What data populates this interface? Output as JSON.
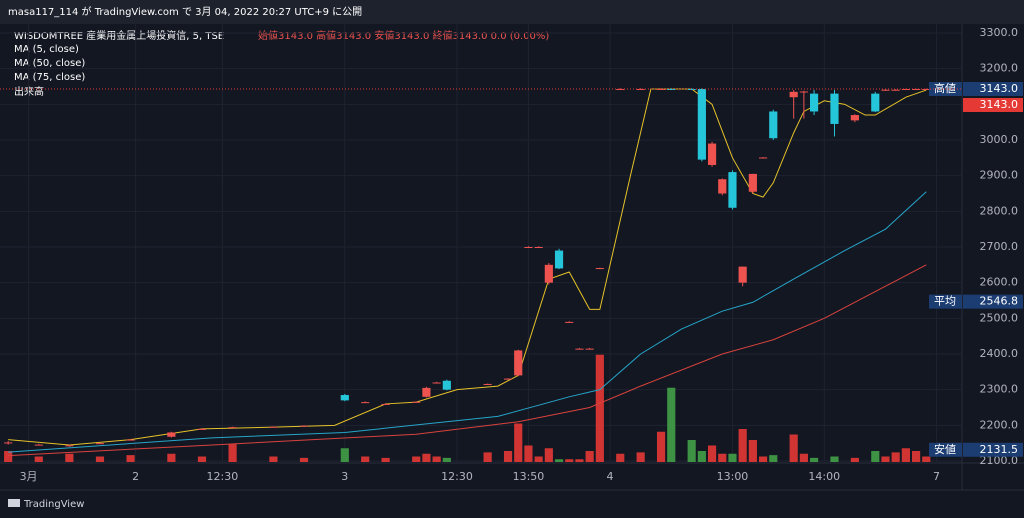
{
  "chart_data": {
    "type": "candlestick",
    "header": "masa117_114 が TradingView.com で 3月 04, 2022 20:27 UTC+9 に公開",
    "title": "WISDOMTREE 産業用金属上場投資信, 5, TSE",
    "ohlc_text": "始値3143.0 高値3143.0 安値3143.0 終値3143.0 0.0 (0.00%)",
    "volume_label": "出来高",
    "brand": "TradingView",
    "up_color": "#ef5350",
    "down_color": "#26c6da",
    "volume_up_color": "#e53935",
    "volume_down_color": "#43a047",
    "xlim": [
      -0.8,
      93.5
    ],
    "ylim": [
      2100,
      3300
    ],
    "vlim": [
      0,
      400
    ],
    "grid": true,
    "yticks": [
      {
        "value": 3300,
        "label": "3300.0"
      },
      {
        "value": 3200,
        "label": "3200.0"
      },
      {
        "value": 3100,
        "label": "3100.0"
      },
      {
        "value": 3000,
        "label": "3000.0"
      },
      {
        "value": 2900,
        "label": "2900.0"
      },
      {
        "value": 2800,
        "label": "2800.0"
      },
      {
        "value": 2700,
        "label": "2700.0"
      },
      {
        "value": 2600,
        "label": "2600.0"
      },
      {
        "value": 2500,
        "label": "2500.0"
      },
      {
        "value": 2400,
        "label": "2400.0"
      },
      {
        "value": 2300,
        "label": "2300.0"
      },
      {
        "value": 2200,
        "label": "2200.0"
      },
      {
        "value": 2100,
        "label": "2100.0"
      }
    ],
    "xticks": [
      {
        "value": 2,
        "label": "3月"
      },
      {
        "value": 12.5,
        "label": "2"
      },
      {
        "value": 21,
        "label": "12:30"
      },
      {
        "value": 33,
        "label": "3"
      },
      {
        "value": 44,
        "label": "12:30"
      },
      {
        "value": 51,
        "label": "13:50"
      },
      {
        "value": 59,
        "label": "4"
      },
      {
        "value": 71,
        "label": "13:00"
      },
      {
        "value": 80,
        "label": "14:00"
      },
      {
        "value": 91,
        "label": "7"
      }
    ],
    "candles": [
      {
        "x": 0,
        "open": 2150,
        "high": 2156,
        "low": 2146,
        "close": 2152,
        "volume": 40
      },
      {
        "x": 3,
        "open": 2146,
        "high": 2148,
        "low": 2144,
        "close": 2146,
        "volume": 20
      },
      {
        "x": 6,
        "open": 2142,
        "high": 2146,
        "low": 2140,
        "close": 2144,
        "volume": 30
      },
      {
        "x": 9,
        "open": 2150,
        "high": 2152,
        "low": 2148,
        "close": 2150,
        "volume": 20
      },
      {
        "x": 12,
        "open": 2160,
        "high": 2162,
        "low": 2158,
        "close": 2160,
        "volume": 25
      },
      {
        "x": 16,
        "open": 2168,
        "high": 2182,
        "low": 2166,
        "close": 2180,
        "volume": 30
      },
      {
        "x": 19,
        "open": 2190,
        "high": 2192,
        "low": 2188,
        "close": 2190,
        "volume": 20
      },
      {
        "x": 22,
        "open": 2195,
        "high": 2196,
        "low": 2193,
        "close": 2195,
        "volume": 65
      },
      {
        "x": 26,
        "open": 2195,
        "high": 2197,
        "low": 2194,
        "close": 2196,
        "volume": 20
      },
      {
        "x": 29,
        "open": 2198,
        "high": 2200,
        "low": 2197,
        "close": 2199,
        "volume": 15
      },
      {
        "x": 33,
        "open": 2285,
        "high": 2288,
        "low": 2268,
        "close": 2270,
        "volume": 50
      },
      {
        "x": 35,
        "open": 2265,
        "high": 2267,
        "low": 2263,
        "close": 2265,
        "volume": 20
      },
      {
        "x": 37,
        "open": 2260,
        "high": 2262,
        "low": 2258,
        "close": 2260,
        "volume": 15
      },
      {
        "x": 40,
        "open": 2265,
        "high": 2267,
        "low": 2263,
        "close": 2266,
        "volume": 20
      },
      {
        "x": 41,
        "open": 2280,
        "high": 2308,
        "low": 2278,
        "close": 2305,
        "volume": 30
      },
      {
        "x": 42,
        "open": 2320,
        "high": 2322,
        "low": 2318,
        "close": 2320,
        "volume": 20
      },
      {
        "x": 43,
        "open": 2325,
        "high": 2328,
        "low": 2298,
        "close": 2300,
        "volume": 15
      },
      {
        "x": 47,
        "open": 2315,
        "high": 2317,
        "low": 2313,
        "close": 2316,
        "volume": 35
      },
      {
        "x": 49,
        "open": 2330,
        "high": 2332,
        "low": 2328,
        "close": 2331,
        "volume": 40
      },
      {
        "x": 50,
        "open": 2340,
        "high": 2412,
        "low": 2338,
        "close": 2410,
        "volume": 140
      },
      {
        "x": 51,
        "open": 2700,
        "high": 2702,
        "low": 2698,
        "close": 2700,
        "volume": 60
      },
      {
        "x": 52,
        "open": 2700,
        "high": 2702,
        "low": 2698,
        "close": 2700,
        "volume": 20
      },
      {
        "x": 53,
        "open": 2600,
        "high": 2655,
        "low": 2595,
        "close": 2650,
        "volume": 50
      },
      {
        "x": 54,
        "open": 2690,
        "high": 2695,
        "low": 2638,
        "close": 2640,
        "volume": 10
      },
      {
        "x": 55,
        "open": 2490,
        "high": 2492,
        "low": 2488,
        "close": 2490,
        "volume": 10
      },
      {
        "x": 56,
        "open": 2415,
        "high": 2417,
        "low": 2413,
        "close": 2415,
        "volume": 10
      },
      {
        "x": 57,
        "open": 2415,
        "high": 2417,
        "low": 2413,
        "close": 2415,
        "volume": 40
      },
      {
        "x": 58,
        "open": 2640,
        "high": 2642,
        "low": 2638,
        "close": 2641,
        "volume": 390
      },
      {
        "x": 60,
        "open": 3143,
        "high": 3145,
        "low": 3141,
        "close": 3143,
        "volume": 30
      },
      {
        "x": 62,
        "open": 3143,
        "high": 3145,
        "low": 3141,
        "close": 3143,
        "volume": 35
      },
      {
        "x": 64,
        "open": 3143,
        "high": 3145,
        "low": 3141,
        "close": 3143,
        "volume": 110
      },
      {
        "x": 65,
        "open": 3143,
        "high": 3145,
        "low": 3141,
        "close": 3142,
        "volume": 270
      },
      {
        "x": 67,
        "open": 3143,
        "high": 3145,
        "low": 3141,
        "close": 3142,
        "volume": 80
      },
      {
        "x": 68,
        "open": 3143,
        "high": 3145,
        "low": 2940,
        "close": 2945,
        "volume": 40
      },
      {
        "x": 69,
        "open": 2930,
        "high": 2995,
        "low": 2925,
        "close": 2990,
        "volume": 60
      },
      {
        "x": 70,
        "open": 2850,
        "high": 2892,
        "low": 2845,
        "close": 2890,
        "volume": 30
      },
      {
        "x": 71,
        "open": 2910,
        "high": 2915,
        "low": 2805,
        "close": 2810,
        "volume": 30
      },
      {
        "x": 72,
        "open": 2600,
        "high": 2645,
        "low": 2590,
        "close": 2645,
        "volume": 120
      },
      {
        "x": 73,
        "open": 2855,
        "high": 2905,
        "low": 2850,
        "close": 2905,
        "volume": 80
      },
      {
        "x": 74,
        "open": 2950,
        "high": 2952,
        "low": 2948,
        "close": 2951,
        "volume": 20
      },
      {
        "x": 75,
        "open": 3080,
        "high": 3085,
        "low": 3000,
        "close": 3005,
        "volume": 25
      },
      {
        "x": 77,
        "open": 3120,
        "high": 3140,
        "low": 3060,
        "close": 3135,
        "volume": 100
      },
      {
        "x": 78,
        "open": 3135,
        "high": 3138,
        "low": 3060,
        "close": 3136,
        "volume": 30
      },
      {
        "x": 79,
        "open": 3130,
        "high": 3140,
        "low": 3070,
        "close": 3080,
        "volume": 15
      },
      {
        "x": 81,
        "open": 3130,
        "high": 3140,
        "low": 3010,
        "close": 3045,
        "volume": 20
      },
      {
        "x": 83,
        "open": 3055,
        "high": 3072,
        "low": 3050,
        "close": 3070,
        "volume": 15
      },
      {
        "x": 85,
        "open": 3130,
        "high": 3135,
        "low": 3078,
        "close": 3080,
        "volume": 40
      },
      {
        "x": 86,
        "open": 3140,
        "high": 3142,
        "low": 3138,
        "close": 3141,
        "volume": 20
      },
      {
        "x": 87,
        "open": 3140,
        "high": 3142,
        "low": 3138,
        "close": 3141,
        "volume": 35
      },
      {
        "x": 88,
        "open": 3143,
        "high": 3144,
        "low": 3142,
        "close": 3143,
        "volume": 50
      },
      {
        "x": 89,
        "open": 3143,
        "high": 3144,
        "low": 3142,
        "close": 3143,
        "volume": 40
      },
      {
        "x": 90,
        "open": 3143,
        "high": 3144,
        "low": 3142,
        "close": 3143,
        "volume": 20
      }
    ],
    "series": [
      {
        "name": "MA (5, close)",
        "color": "#e6c229",
        "x": [
          0,
          6,
          12,
          19,
          26,
          32,
          37,
          40,
          44,
          48,
          50,
          53,
          55,
          57,
          58,
          61,
          63,
          67,
          69,
          71,
          73,
          74,
          75,
          77,
          78,
          80,
          82,
          84,
          85,
          88,
          90
        ],
        "values": [
          2160,
          2145,
          2160,
          2190,
          2195,
          2200,
          2260,
          2265,
          2300,
          2310,
          2340,
          2610,
          2630,
          2525,
          2525,
          2900,
          3143,
          3143,
          3100,
          2950,
          2850,
          2840,
          2880,
          3020,
          3080,
          3110,
          3100,
          3070,
          3070,
          3120,
          3140
        ]
      },
      {
        "name": "MA (50, close)",
        "color": "#26a5c9",
        "x": [
          0,
          20,
          33,
          48,
          55,
          58,
          62,
          66,
          70,
          73,
          77,
          82,
          86,
          90
        ],
        "values": [
          2125,
          2165,
          2180,
          2225,
          2280,
          2300,
          2400,
          2470,
          2520,
          2545,
          2610,
          2690,
          2750,
          2855
        ]
      },
      {
        "name": "MA (75, close)",
        "color": "#d8433e",
        "x": [
          0,
          20,
          40,
          50,
          57,
          62,
          70,
          75,
          80,
          90
        ],
        "values": [
          2115,
          2145,
          2175,
          2210,
          2250,
          2310,
          2400,
          2440,
          2500,
          2650
        ]
      }
    ],
    "price_labels": [
      {
        "name": "高値",
        "value": 3143,
        "label": "3143.0",
        "color": "#1c3d72"
      },
      {
        "value": 3143,
        "label": "3143.0",
        "color": "#e53935"
      },
      {
        "name": "平均",
        "value": 2546.8,
        "label": "2546.8",
        "color": "#1c3d72"
      },
      {
        "name": "安値",
        "value": 2131.5,
        "label": "2131.5",
        "color": "#1c3d72"
      }
    ]
  }
}
